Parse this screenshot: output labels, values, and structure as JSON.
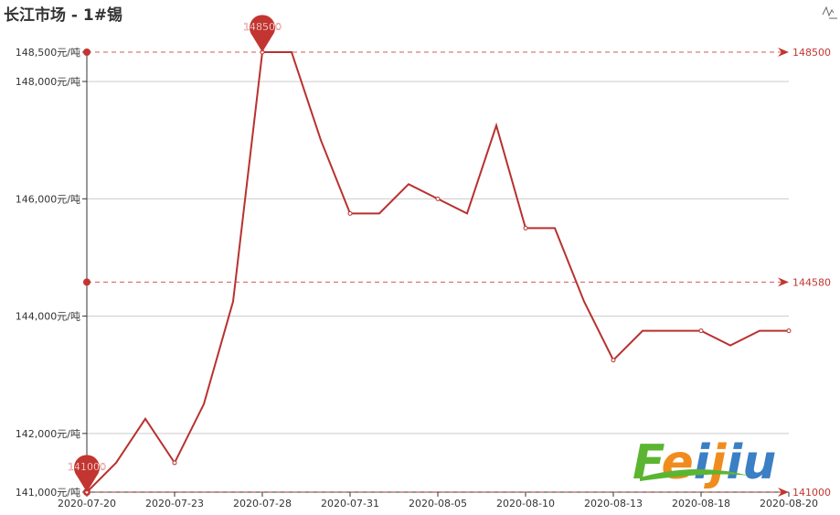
{
  "chart_data": {
    "type": "line",
    "title": "长江市场 - 1#锡",
    "x_tick_labels": [
      "2020-07-20",
      "2020-07-23",
      "2020-07-28",
      "2020-07-31",
      "2020-08-05",
      "2020-08-10",
      "2020-08-13",
      "2020-08-18",
      "2020-08-20"
    ],
    "x_tick_interval": 3,
    "values": [
      141000,
      141500,
      142250,
      141500,
      142500,
      144250,
      148500,
      148500,
      147000,
      145750,
      145750,
      146250,
      146000,
      145750,
      147250,
      145500,
      145500,
      144250,
      143250,
      143750,
      143750,
      143750,
      143500,
      143750,
      143750
    ],
    "y_unit_suffix": "元/吨",
    "y_ticks": [
      141000,
      142000,
      144000,
      146000,
      148000,
      148500
    ],
    "y_tick_labels": [
      "141,000元/吨",
      "142,000元/吨",
      "144,000元/吨",
      "146,000元/吨",
      "148,000元/吨",
      "148,500元/吨"
    ],
    "ylim": [
      141000,
      148500
    ],
    "grid": true,
    "legend": "none",
    "mark_points": [
      {
        "type": "max",
        "label": "148500",
        "value": 148500,
        "index": 6
      },
      {
        "type": "min",
        "label": "141000",
        "value": 141000,
        "index": 0
      }
    ],
    "mark_lines": [
      {
        "type": "max",
        "label": "148500",
        "value": 148500
      },
      {
        "type": "average",
        "label": "144580",
        "value": 144580
      },
      {
        "type": "min",
        "label": "141000",
        "value": 141000
      }
    ],
    "colors": {
      "line": "#b8312f",
      "mark": "#c23531",
      "grid": "#cccccc",
      "axis": "#333333"
    }
  },
  "toolbox": {
    "icon": "line-chart-icon"
  },
  "watermark": {
    "text": "Feijiu",
    "colors": [
      "#5cb531",
      "#f08c1e",
      "#3b7fc4"
    ]
  }
}
